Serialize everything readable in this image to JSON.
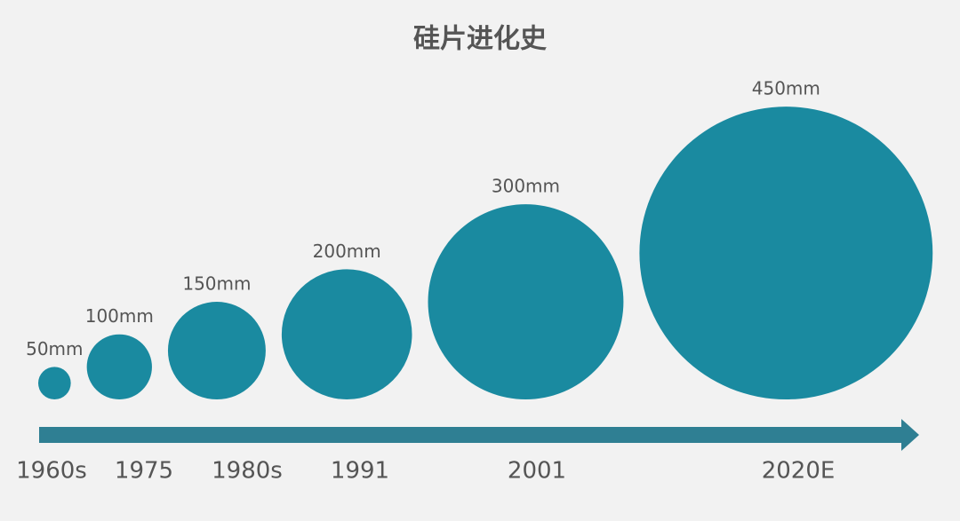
{
  "chart_data": {
    "type": "bubble",
    "title": "硅片进化史",
    "categories": [
      "1960s",
      "1975",
      "1980s",
      "1991",
      "2001",
      "2020E"
    ],
    "values": [
      50,
      100,
      150,
      200,
      300,
      450
    ],
    "value_labels": [
      "50mm",
      "100mm",
      "150mm",
      "200mm",
      "300mm",
      "450mm"
    ],
    "color": "#1a8aa0",
    "axis_color": "#2f7f93"
  }
}
